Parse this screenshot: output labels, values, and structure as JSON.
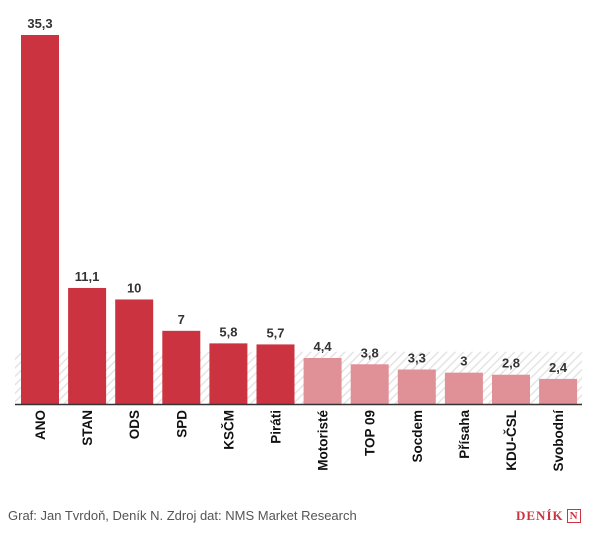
{
  "chart_data": {
    "type": "bar",
    "categories": [
      "ANO",
      "STAN",
      "ODS",
      "SPD",
      "KSČM",
      "Piráti",
      "Motoristé",
      "TOP 09",
      "Socdem",
      "Přísaha",
      "KDU-ČSL",
      "Svobodní"
    ],
    "values": [
      35.3,
      11.1,
      10,
      7,
      5.8,
      5.7,
      4.4,
      3.8,
      3.3,
      3,
      2.8,
      2.4
    ],
    "value_labels": [
      "35,3",
      "11,1",
      "10",
      "7",
      "5,8",
      "5,7",
      "4,4",
      "3,8",
      "3,3",
      "3",
      "2,8",
      "2,4"
    ],
    "threshold": 5,
    "ylim": [
      0,
      35.3
    ],
    "title": "",
    "xlabel": "",
    "ylabel": "",
    "grid": false,
    "colors": {
      "above_threshold": "#cc3340",
      "below_threshold": "#e09097",
      "threshold_hatch": "#ececec"
    }
  },
  "footer": {
    "credit": "Graf: Jan Tvrdoň, Deník N. Zdroj dat: NMS Market Research"
  },
  "logo": {
    "text": "DENÍK",
    "letter": "N"
  }
}
